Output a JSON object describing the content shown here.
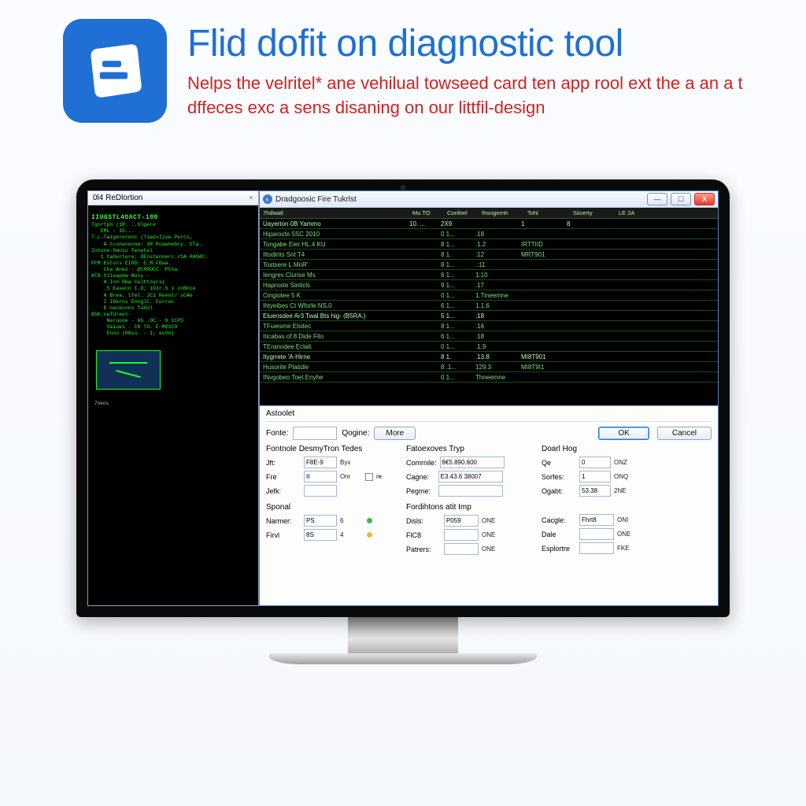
{
  "header": {
    "title": "Flid dofit on   diagnostic tool",
    "subtitle": "Nelps the velritel* ane vehilual towseed card ten app rool ext the a an a t dffeces exc a sens disaning on our littfil-design",
    "title_color": "#1f6fd4",
    "subtitle_color": "#d42020",
    "logo_bg": "#1f6fd4"
  },
  "left_panel": {
    "title": "0l4 ReDlortion",
    "heading": "IIUGSTL4OACT-100",
    "lines": [
      "Tgortpn (1R. ..9lgere",
      "   EML - 15...",
      "T-L-Taigererenc (Tiadstive Percs,",
      "    A tcsnenenne: 1R Rcawnebry. ETa.",
      "Intone-Smnio Tenetal",
      "   1 taOertere; DEnstennerc.rSA RASAC.",
      "PCM.Estors EIRD: E_M.FBaa.",
      "    Cha Aneo - @CRROCC. PCha.",
      "ATA.Slleapda-Nosy -",
      "    A Inn Rma Celttosrsi",
      "    .5 Easecn I.D; 103r.5 i cnBnce",
      "    A Brea. tTel. JC1 Reenl/ sCAe",
      "    I IOerns EnnglC. Corruc",
      "    E nacecnns TsbUl",
      "BSK.cwTUreel-",
      "     Neruone - 65 .0C.- 9 1CP5",
      "     Saiue1 - CR T0. E M0SC0",
      "     Enno (ROss. - 1; ecOn)"
    ],
    "footer": "7oeos"
  },
  "window": {
    "title": "Dradgoosic Fire Tukrlst",
    "btn_min": "—",
    "btn_max": "☐",
    "btn_close": "X"
  },
  "table": {
    "headers": {
      "c1": "7hdwatl",
      "c2": "Mu TO",
      "c3": "Confeel",
      "c4": "Ihsngernh",
      "c5": "Tohl",
      "c6": "Siicerty",
      "c7": "LE 2A"
    },
    "rows": [
      {
        "c1": "Uayerton 0B Yammo",
        "c2": "10. ...",
        "c3": "2X9",
        "c4": "",
        "c5": "1",
        "c6": "8",
        "b": true
      },
      {
        "c1": "Hiparocte 5SC 2010",
        "c2": "",
        "c3": "0 1...",
        "c4": ".18",
        "c5": "",
        "c6": ""
      },
      {
        "c1": "Tongabe Eier HL.4 KU",
        "c2": "",
        "c3": "8 1...",
        "c4": ".1.2",
        "c5": "IRTTIID",
        "c6": ""
      },
      {
        "c1": "Iltodirits Snt T4",
        "c2": "",
        "c3": "8 1.",
        "c4": ":12",
        "c5": "MRT901",
        "c6": ""
      },
      {
        "c1": "Tostsere L MnR'",
        "c2": "",
        "c3": "8 1...",
        "c4": ".:11",
        "c5": "",
        "c6": ""
      },
      {
        "c1": "Iengrev Clurise Ms",
        "c2": "",
        "c3": "6 1...",
        "c4": "1:10",
        "c5": "",
        "c6": ""
      },
      {
        "c1": "Haproste Sinticls",
        "c2": "",
        "c3": "9 1...",
        "c4": ".17",
        "c5": "",
        "c6": ""
      },
      {
        "c1": "Cingiotee 5 K",
        "c2": "",
        "c3": "0 1...",
        "c4": "1.Tineemne",
        "c5": "",
        "c6": ""
      },
      {
        "c1": "Ihtyeibes Ct Wforle NS.0",
        "c2": "",
        "c3": "6 1...",
        "c4": "1.1.6",
        "c5": "",
        "c6": ""
      },
      {
        "c1": "Eluensdee Ar3 Twal Bts hig- (B5RA:)",
        "c2": "",
        "c3": "5 1...",
        "c4": ":18",
        "c5": "",
        "c6": "",
        "b": true
      },
      {
        "c1": "TFuiesme Elsitec",
        "c2": "",
        "c3": "8 1...",
        "c4": ":16",
        "c5": "",
        "c6": ""
      },
      {
        "c1": "Iticabas of 8 Dide Filo",
        "c2": "",
        "c3": "6 1...",
        "c4": ".18",
        "c5": "",
        "c6": ""
      },
      {
        "c1": "TEranodee Eclait",
        "c2": "",
        "c3": "0 1...",
        "c4": ".1.9",
        "c5": "",
        "c6": ""
      },
      {
        "c1": "Itygrrete 'A-Hirne",
        "c2": "",
        "c3": "8 1.",
        "c4": ".13.8",
        "c5": "MI8T901",
        "c6": "",
        "b": true
      },
      {
        "c1": "Husorite Platidle",
        "c2": "",
        "c3": "8 .1...",
        "c4": "129.3",
        "c5": "MI8T9I1",
        "c6": ""
      },
      {
        "c1": "INvgobeo Toet Enyhe",
        "c2": "",
        "c3": "0 1...",
        "c4": "Thneemne",
        "c5": "",
        "c6": ""
      }
    ]
  },
  "form": {
    "section_label": "Astoolet",
    "fonte_label": "Fonte:",
    "fonte_value": "",
    "qogine_label": "Qogine:",
    "more_label": "More",
    "ok_label": "OK",
    "cancel_label": "Cancel",
    "group1": {
      "title": "Fontnole DesmyTron Tedes",
      "rows": [
        {
          "l": "Jft:",
          "v": "F8E-9",
          "u": "Byx"
        },
        {
          "l": "Fre",
          "v": "II",
          "u": "Onr"
        },
        {
          "l": "Jefk:",
          "v": "",
          "u": ""
        }
      ]
    },
    "sponal": {
      "title": "Sponal",
      "rows": [
        {
          "l": "Narmer:",
          "v": "PS",
          "u": "6"
        },
        {
          "l": "Firvl",
          "v": "8S",
          "u": "4"
        }
      ]
    },
    "group2": {
      "title": "Fatoexoves Tryp",
      "rows": [
        {
          "l": "Comrnile:",
          "v": "8€5.890.600",
          "u": ""
        },
        {
          "l": "Cagne:",
          "v": "E3.43.6 38007",
          "u": ""
        },
        {
          "l": "Pegme:",
          "v": "",
          "u": ""
        }
      ]
    },
    "group3": {
      "title": "Doarl Hog",
      "rows": [
        {
          "l": "Qe",
          "v": "0",
          "u": "ONZ"
        },
        {
          "l": "Sorfes:",
          "v": "1",
          "u": "ONQ"
        },
        {
          "l": "Ogabt:",
          "v": "53.38",
          "u": "2NE"
        }
      ]
    },
    "group4": {
      "title": "Fordihtons atit Imp",
      "rows": [
        {
          "l": "Disls:",
          "v": "P059",
          "u": "ONE"
        },
        {
          "l": "FlC8",
          "v": "",
          "u": "ONE"
        },
        {
          "l": "Patrers:",
          "v": "",
          "u": "ONE"
        }
      ]
    },
    "group5": {
      "rows": [
        {
          "l": "Cacgle:",
          "v": "Fhrt8",
          "u": "ONI"
        },
        {
          "l": "Dale",
          "v": "",
          "u": "ONE"
        },
        {
          "l": "Esplortre",
          "v": "",
          "u": "FKE"
        }
      ]
    }
  }
}
